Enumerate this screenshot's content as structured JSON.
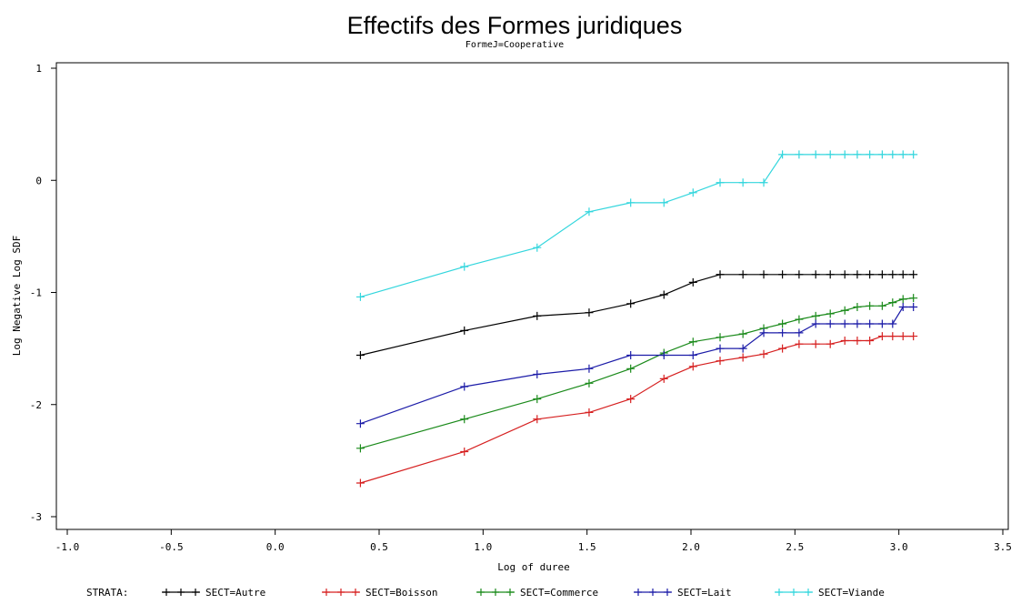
{
  "chart_data": {
    "type": "line",
    "title": "Effectifs des Formes juridiques",
    "subtitle": "FormeJ=Cooperative",
    "xlabel": "Log of duree",
    "ylabel": "Log Negative Log SDF",
    "xlim": [
      -1.0,
      3.5
    ],
    "ylim": [
      -3,
      1
    ],
    "xticks": [
      "-1.0",
      "-0.5",
      "0.0",
      "0.5",
      "1.0",
      "1.5",
      "2.0",
      "2.5",
      "3.0",
      "3.5"
    ],
    "yticks": [
      "-3",
      "-2",
      "-1",
      "0",
      "1"
    ],
    "grid": false,
    "legend_position": "bottom",
    "legend_title": "STRATA:",
    "marker": "+",
    "series": [
      {
        "name": "SECT=Autre",
        "color": "#000000",
        "points": [
          [
            0.41,
            -1.56
          ],
          [
            0.91,
            -1.34
          ],
          [
            1.26,
            -1.21
          ],
          [
            1.51,
            -1.18
          ],
          [
            1.71,
            -1.1
          ],
          [
            1.87,
            -1.02
          ],
          [
            2.01,
            -0.91
          ],
          [
            2.14,
            -0.84
          ],
          [
            2.25,
            -0.84
          ],
          [
            2.35,
            -0.84
          ],
          [
            2.44,
            -0.84
          ],
          [
            2.52,
            -0.84
          ],
          [
            2.6,
            -0.84
          ],
          [
            2.67,
            -0.84
          ],
          [
            2.74,
            -0.84
          ],
          [
            2.8,
            -0.84
          ],
          [
            2.86,
            -0.84
          ],
          [
            2.92,
            -0.84
          ],
          [
            2.97,
            -0.84
          ],
          [
            3.02,
            -0.84
          ],
          [
            3.07,
            -0.84
          ]
        ]
      },
      {
        "name": "SECT=Boisson",
        "color": "#d62020",
        "points": [
          [
            0.41,
            -2.7
          ],
          [
            0.91,
            -2.42
          ],
          [
            1.26,
            -2.13
          ],
          [
            1.51,
            -2.07
          ],
          [
            1.71,
            -1.95
          ],
          [
            1.87,
            -1.77
          ],
          [
            2.01,
            -1.66
          ],
          [
            2.14,
            -1.61
          ],
          [
            2.25,
            -1.58
          ],
          [
            2.35,
            -1.55
          ],
          [
            2.44,
            -1.5
          ],
          [
            2.52,
            -1.46
          ],
          [
            2.6,
            -1.46
          ],
          [
            2.67,
            -1.46
          ],
          [
            2.74,
            -1.43
          ],
          [
            2.8,
            -1.43
          ],
          [
            2.86,
            -1.43
          ],
          [
            2.92,
            -1.39
          ],
          [
            2.97,
            -1.39
          ],
          [
            3.02,
            -1.39
          ],
          [
            3.07,
            -1.39
          ]
        ]
      },
      {
        "name": "SECT=Commerce",
        "color": "#1a8a1a",
        "points": [
          [
            0.41,
            -2.39
          ],
          [
            0.91,
            -2.13
          ],
          [
            1.26,
            -1.95
          ],
          [
            1.51,
            -1.81
          ],
          [
            1.71,
            -1.68
          ],
          [
            1.87,
            -1.54
          ],
          [
            2.01,
            -1.44
          ],
          [
            2.14,
            -1.4
          ],
          [
            2.25,
            -1.37
          ],
          [
            2.35,
            -1.32
          ],
          [
            2.44,
            -1.28
          ],
          [
            2.52,
            -1.24
          ],
          [
            2.6,
            -1.21
          ],
          [
            2.67,
            -1.19
          ],
          [
            2.74,
            -1.16
          ],
          [
            2.8,
            -1.13
          ],
          [
            2.86,
            -1.12
          ],
          [
            2.92,
            -1.12
          ],
          [
            2.97,
            -1.09
          ],
          [
            3.02,
            -1.06
          ],
          [
            3.07,
            -1.05
          ]
        ]
      },
      {
        "name": "SECT=Lait",
        "color": "#1c1ca8",
        "points": [
          [
            0.41,
            -2.17
          ],
          [
            0.91,
            -1.84
          ],
          [
            1.26,
            -1.73
          ],
          [
            1.51,
            -1.68
          ],
          [
            1.71,
            -1.56
          ],
          [
            1.87,
            -1.56
          ],
          [
            2.01,
            -1.56
          ],
          [
            2.14,
            -1.5
          ],
          [
            2.25,
            -1.5
          ],
          [
            2.35,
            -1.36
          ],
          [
            2.44,
            -1.36
          ],
          [
            2.52,
            -1.36
          ],
          [
            2.6,
            -1.28
          ],
          [
            2.67,
            -1.28
          ],
          [
            2.74,
            -1.28
          ],
          [
            2.8,
            -1.28
          ],
          [
            2.86,
            -1.28
          ],
          [
            2.92,
            -1.28
          ],
          [
            2.97,
            -1.28
          ],
          [
            3.02,
            -1.13
          ],
          [
            3.07,
            -1.13
          ]
        ]
      },
      {
        "name": "SECT=Viande",
        "color": "#33d6dd",
        "points": [
          [
            0.41,
            -1.04
          ],
          [
            0.91,
            -0.77
          ],
          [
            1.26,
            -0.6
          ],
          [
            1.51,
            -0.28
          ],
          [
            1.71,
            -0.2
          ],
          [
            1.87,
            -0.2
          ],
          [
            2.01,
            -0.11
          ],
          [
            2.14,
            -0.02
          ],
          [
            2.25,
            -0.02
          ],
          [
            2.35,
            -0.02
          ],
          [
            2.44,
            0.23
          ],
          [
            2.52,
            0.23
          ],
          [
            2.6,
            0.23
          ],
          [
            2.67,
            0.23
          ],
          [
            2.74,
            0.23
          ],
          [
            2.8,
            0.23
          ],
          [
            2.86,
            0.23
          ],
          [
            2.92,
            0.23
          ],
          [
            2.97,
            0.23
          ],
          [
            3.02,
            0.23
          ],
          [
            3.07,
            0.23
          ]
        ]
      }
    ]
  }
}
